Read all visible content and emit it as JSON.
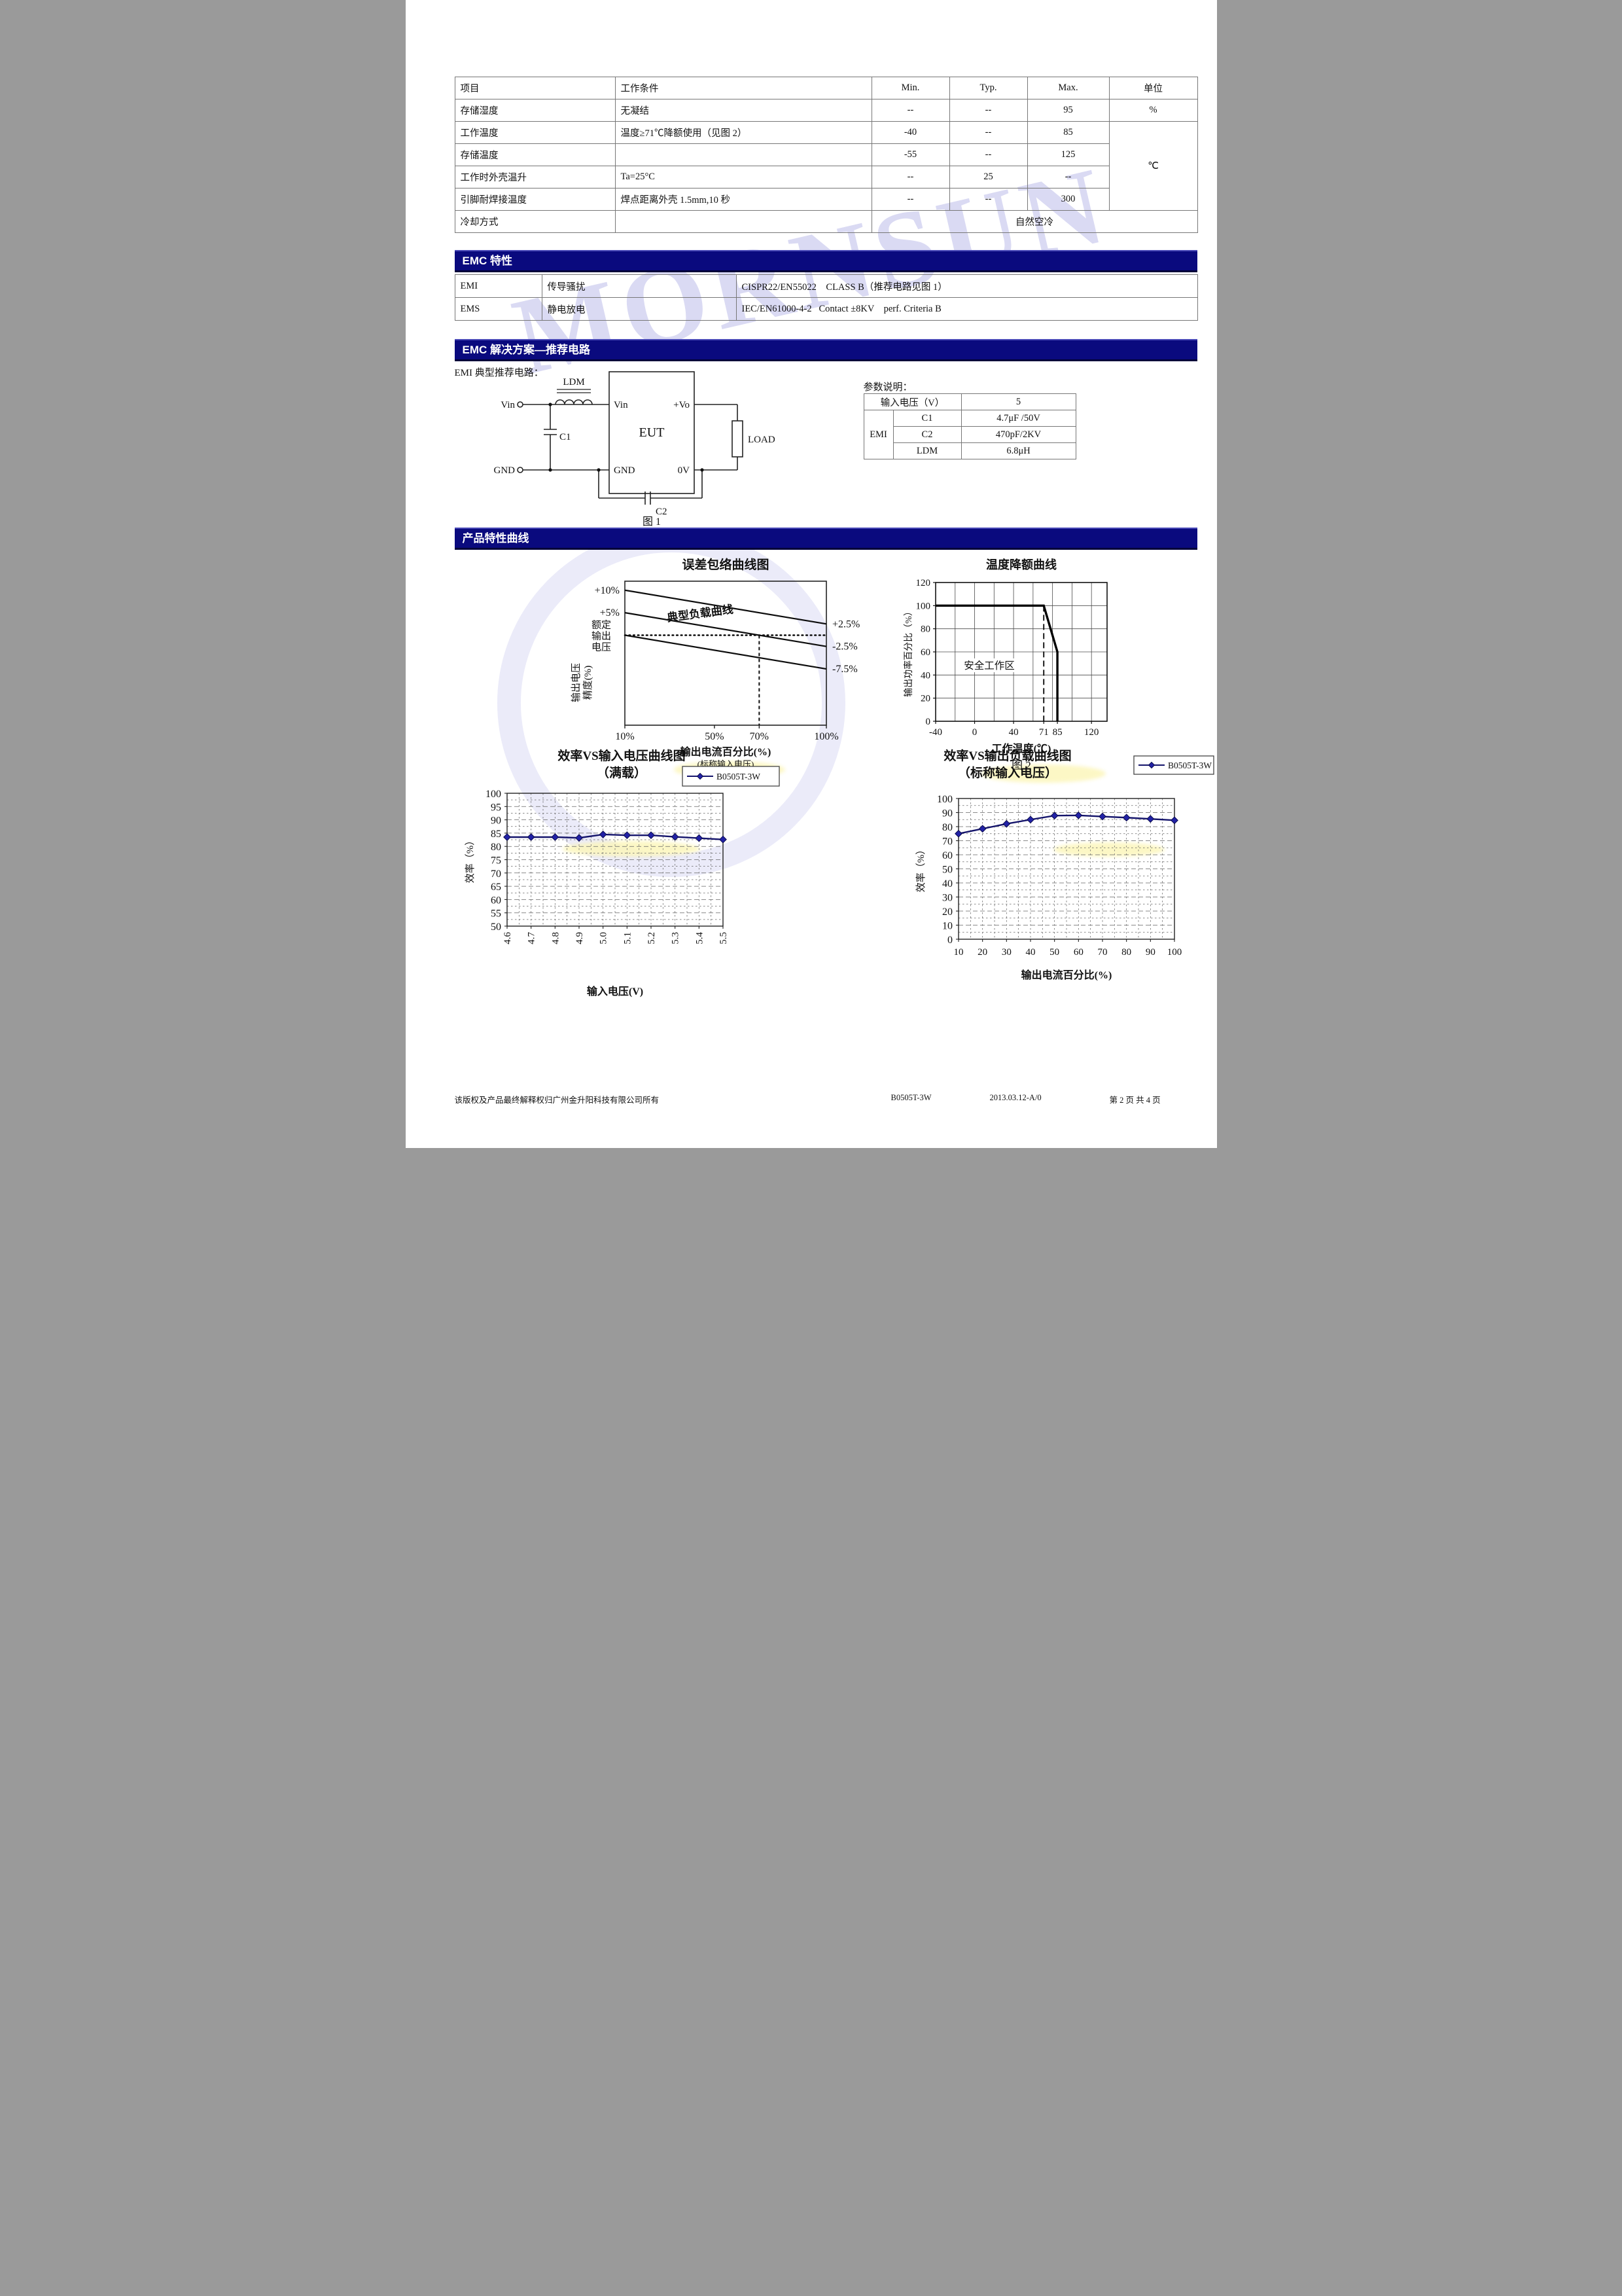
{
  "page": {
    "watermark": "MORNSUN",
    "footer": {
      "copyright": "该版权及产品最终解释权归广州金升阳科技有限公司所有",
      "model": "B0505T-3W",
      "version": "2013.03.12-A/0",
      "page_label": "第 2 页 共 4 页"
    }
  },
  "colors": {
    "section_bar": "#0a0a7e",
    "series_line": "#14146b",
    "series_marker": "#2222a6",
    "watermark": "#d6d6f2",
    "grid": "#666666"
  },
  "spec_table": {
    "headers": [
      "项目",
      "工作条件",
      "Min.",
      "Typ.",
      "Max.",
      "单位"
    ],
    "rows": [
      {
        "item": "存储湿度",
        "condition": "无凝结",
        "min": "--",
        "typ": "--",
        "max": "95",
        "unit": "%"
      },
      {
        "item": "工作温度",
        "condition": "温度≥71℃降额使用（见图 2）",
        "min": "-40",
        "typ": "--",
        "max": "85",
        "unit": "℃"
      },
      {
        "item": "存储温度",
        "condition": "",
        "min": "-55",
        "typ": "--",
        "max": "125"
      },
      {
        "item": "工作时外壳温升",
        "condition": "Ta=25°C",
        "min": "--",
        "typ": "25",
        "max": "--"
      },
      {
        "item": "引脚耐焊接温度",
        "condition": "焊点距离外壳 1.5mm,10 秒",
        "min": "--",
        "typ": "--",
        "max": "300"
      },
      {
        "item": "冷却方式",
        "condition": "",
        "value": "自然空冷"
      }
    ]
  },
  "emc": {
    "title": "EMC 特性",
    "rows": [
      {
        "type": "EMI",
        "name": "传导骚扰",
        "standard": "CISPR22/EN55022    CLASS B（推荐电路见图 1）"
      },
      {
        "type": "EMS",
        "name": "静电放电",
        "standard": "IEC/EN61000-4-2   Contact ±8KV    perf. Criteria B"
      }
    ]
  },
  "solution": {
    "title": "EMC 解决方案—推荐电路",
    "subtitle": "EMI 典型推荐电路：",
    "figure_caption": "图 1",
    "circuit": {
      "vin": "Vin",
      "gnd": "GND",
      "ldm": "LDM",
      "c1": "C1",
      "c2": "C2",
      "eut": "EUT",
      "load": "LOAD",
      "pin_vin": "Vin",
      "pin_vo": "+Vo",
      "pin_gnd": "GND",
      "pin_0v": "0V"
    },
    "params": {
      "title": "参数说明：",
      "input_label": "输入电压（V）",
      "input_value": "5",
      "group": "EMI",
      "rows": [
        {
          "name": "C1",
          "value": "4.7μF /50V"
        },
        {
          "name": "C2",
          "value": "470pF/2KV"
        },
        {
          "name": "LDM",
          "value": "6.8μH"
        }
      ]
    }
  },
  "curves": {
    "title": "产品特性曲线"
  },
  "chart_data": [
    {
      "id": "error_envelope",
      "type": "line",
      "title": "误差包络曲线图",
      "xlabel": "输出电流百分比(%)",
      "xlabel_note": "(标称输入电压)",
      "ylabel_lines": [
        "输出电压",
        "精度(%)"
      ],
      "axis_side_label_lines": [
        "额定",
        "输出",
        "电压"
      ],
      "annotation": "典型负载曲线",
      "xlim": [
        10,
        100
      ],
      "ylim": [
        -20,
        12
      ],
      "x_ticks": [
        {
          "v": 10,
          "label": "10%"
        },
        {
          "v": 50,
          "label": "50%"
        },
        {
          "v": 70,
          "label": "70%"
        },
        {
          "v": 100,
          "label": "100%"
        }
      ],
      "left_labels": [
        {
          "v": 10,
          "label": "+10%"
        },
        {
          "v": 5,
          "label": "+5%"
        }
      ],
      "right_labels": [
        {
          "v": 2.5,
          "label": "+2.5%"
        },
        {
          "v": -2.5,
          "label": "-2.5%"
        },
        {
          "v": -7.5,
          "label": "-7.5%"
        }
      ],
      "lines": [
        {
          "name": "上限包络线",
          "points": [
            [
              10,
              10
            ],
            [
              100,
              2.5
            ]
          ]
        },
        {
          "name": "典型负载曲线",
          "points": [
            [
              10,
              5
            ],
            [
              100,
              -2.5
            ]
          ]
        },
        {
          "name": "下限包络线",
          "points": [
            [
              10,
              0
            ],
            [
              100,
              -7.5
            ]
          ]
        }
      ],
      "zero_line_y": 0,
      "dashed_vertical_x": 70,
      "grid": false
    },
    {
      "id": "derating",
      "type": "line",
      "title": "温度降额曲线",
      "caption": "图 2",
      "xlabel": "工作温度(℃)",
      "ylabel": "输出功率百分比（%）",
      "area_label": "安全工作区",
      "xlim": [
        -40,
        136
      ],
      "ylim": [
        0,
        120
      ],
      "x_ticks": [
        {
          "v": -40,
          "label": "-40"
        },
        {
          "v": 0,
          "label": "0"
        },
        {
          "v": 40,
          "label": "40"
        },
        {
          "v": 71,
          "label": "71"
        },
        {
          "v": 85,
          "label": "85"
        },
        {
          "v": 120,
          "label": "120"
        }
      ],
      "y_ticks": [
        0,
        20,
        40,
        60,
        80,
        100,
        120
      ],
      "grid_x_values": [
        -40,
        -20,
        0,
        20,
        40,
        60,
        80,
        100,
        120
      ],
      "dashed_vertical_x": 71,
      "series": [
        {
          "name": "降额曲线",
          "points": [
            [
              -40,
              100
            ],
            [
              71,
              100
            ],
            [
              85,
              60
            ],
            [
              85,
              0
            ]
          ]
        }
      ],
      "grid": true
    },
    {
      "id": "eff_vs_vin",
      "type": "line",
      "title": "效率VS输入电压曲线图",
      "subtitle": "（满载）",
      "xlabel": "输入电压(V)",
      "ylabel": "效率（%）",
      "legend_position": "top-right",
      "categories": [
        "4.6",
        "4.7",
        "4.8",
        "4.9",
        "5.0",
        "5.1",
        "5.2",
        "5.3",
        "5.4",
        "5.5"
      ],
      "series": [
        {
          "name": "B0505T-3W",
          "values": [
            83.5,
            83.5,
            83.5,
            83.2,
            84.5,
            84.2,
            84.2,
            83.6,
            83.1,
            82.6
          ]
        }
      ],
      "ylim": [
        50,
        100
      ],
      "y_ticks": [
        50,
        55,
        60,
        65,
        70,
        75,
        80,
        85,
        90,
        95,
        100
      ],
      "y_minor_step": 2.5,
      "x_tick_rotated": true,
      "grid": true
    },
    {
      "id": "eff_vs_load",
      "type": "line",
      "title": "效率VS输出负载曲线图",
      "subtitle": "（标称输入电压）",
      "xlabel": "输出电流百分比(%)",
      "ylabel": "效率（%）",
      "legend_position": "top-right",
      "categories": [
        "10",
        "20",
        "30",
        "40",
        "50",
        "60",
        "70",
        "80",
        "90",
        "100"
      ],
      "series": [
        {
          "name": "B0505T-3W",
          "values": [
            75,
            78.5,
            82,
            85,
            87.8,
            88,
            87.2,
            86.4,
            85.5,
            84.5
          ]
        }
      ],
      "ylim": [
        0,
        100
      ],
      "y_ticks": [
        0,
        10,
        20,
        30,
        40,
        50,
        60,
        70,
        80,
        90,
        100
      ],
      "y_minor_step": 5,
      "x_tick_rotated": false,
      "grid": true
    }
  ]
}
